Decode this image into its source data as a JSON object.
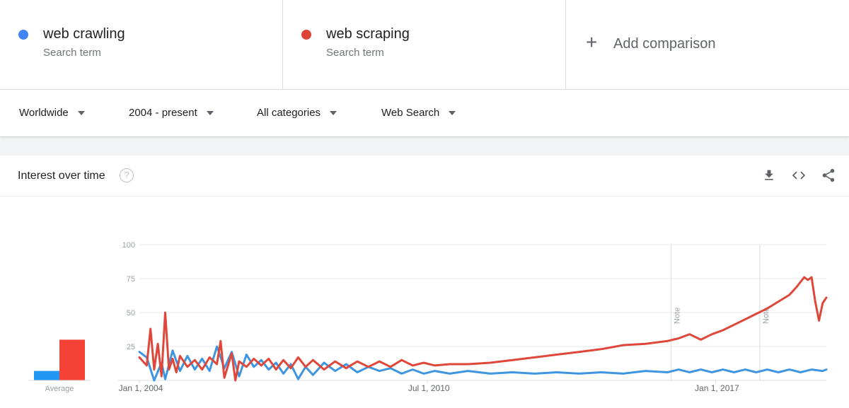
{
  "terms": [
    {
      "name": "web crawling",
      "sub": "Search term",
      "color": "#4285f4"
    },
    {
      "name": "web scraping",
      "sub": "Search term",
      "color": "#db4437"
    }
  ],
  "add_comparison": {
    "label": "Add comparison"
  },
  "filters": {
    "region": "Worldwide",
    "time": "2004 - present",
    "category": "All categories",
    "search_type": "Web Search"
  },
  "card": {
    "title": "Interest over time",
    "help_icon": "help-icon",
    "tools": [
      "download-icon",
      "embed-icon",
      "share-icon"
    ]
  },
  "chart_data": {
    "type": "line",
    "ylim": [
      0,
      100
    ],
    "yticks": [
      "100",
      "75",
      "50",
      "25"
    ],
    "xlim": [
      "2004-01-01",
      "2019-07-01"
    ],
    "xticks": [
      {
        "label": "Jan 1, 2004",
        "date": "2004-01-01"
      },
      {
        "label": "Jul 1, 2010",
        "date": "2010-07-01"
      },
      {
        "label": "Jan 1, 2017",
        "date": "2017-01-01"
      }
    ],
    "notes": [
      {
        "label": "Note",
        "date": "2016-01-01"
      },
      {
        "label": "Note",
        "date": "2018-01-01"
      }
    ],
    "average": {
      "label": "Average",
      "values": [
        7,
        30
      ]
    },
    "series": [
      {
        "name": "web crawling",
        "color": "#4285f4",
        "line_color": "#3e95e0",
        "points": [
          [
            "2004-01",
            21
          ],
          [
            "2004-03",
            17
          ],
          [
            "2004-05",
            0
          ],
          [
            "2004-07",
            13
          ],
          [
            "2004-08",
            1
          ],
          [
            "2004-10",
            22
          ],
          [
            "2004-12",
            7
          ],
          [
            "2005-02",
            18
          ],
          [
            "2005-04",
            8
          ],
          [
            "2005-06",
            16
          ],
          [
            "2005-08",
            7
          ],
          [
            "2005-10",
            25
          ],
          [
            "2005-12",
            9
          ],
          [
            "2006-02",
            21
          ],
          [
            "2006-04",
            3
          ],
          [
            "2006-06",
            19
          ],
          [
            "2006-08",
            10
          ],
          [
            "2006-10",
            15
          ],
          [
            "2006-12",
            8
          ],
          [
            "2007-02",
            13
          ],
          [
            "2007-04",
            5
          ],
          [
            "2007-06",
            12
          ],
          [
            "2007-08",
            1
          ],
          [
            "2007-10",
            10
          ],
          [
            "2007-12",
            4
          ],
          [
            "2008-03",
            13
          ],
          [
            "2008-06",
            7
          ],
          [
            "2008-09",
            12
          ],
          [
            "2008-12",
            6
          ],
          [
            "2009-03",
            10
          ],
          [
            "2009-06",
            7
          ],
          [
            "2009-09",
            9
          ],
          [
            "2009-12",
            5
          ],
          [
            "2010-03",
            8
          ],
          [
            "2010-06",
            5
          ],
          [
            "2010-09",
            7
          ],
          [
            "2011-01",
            5
          ],
          [
            "2011-06",
            7
          ],
          [
            "2011-12",
            5
          ],
          [
            "2012-06",
            6
          ],
          [
            "2012-12",
            5
          ],
          [
            "2013-06",
            6
          ],
          [
            "2013-12",
            5
          ],
          [
            "2014-06",
            6
          ],
          [
            "2014-12",
            5
          ],
          [
            "2015-06",
            7
          ],
          [
            "2015-12",
            6
          ],
          [
            "2016-03",
            8
          ],
          [
            "2016-06",
            6
          ],
          [
            "2016-09",
            8
          ],
          [
            "2016-12",
            6
          ],
          [
            "2017-03",
            8
          ],
          [
            "2017-06",
            6
          ],
          [
            "2017-09",
            8
          ],
          [
            "2017-12",
            6
          ],
          [
            "2018-03",
            8
          ],
          [
            "2018-06",
            6
          ],
          [
            "2018-09",
            8
          ],
          [
            "2018-12",
            6
          ],
          [
            "2019-03",
            8
          ],
          [
            "2019-06",
            7
          ],
          [
            "2019-07",
            8
          ]
        ]
      },
      {
        "name": "web scraping",
        "color": "#db4437",
        "line_color": "#e0473b",
        "points": [
          [
            "2004-01",
            17
          ],
          [
            "2004-03",
            11
          ],
          [
            "2004-04",
            38
          ],
          [
            "2004-05",
            8
          ],
          [
            "2004-06",
            27
          ],
          [
            "2004-07",
            3
          ],
          [
            "2004-08",
            50
          ],
          [
            "2004-09",
            8
          ],
          [
            "2004-10",
            16
          ],
          [
            "2004-11",
            6
          ],
          [
            "2004-12",
            18
          ],
          [
            "2005-02",
            10
          ],
          [
            "2005-04",
            15
          ],
          [
            "2005-06",
            8
          ],
          [
            "2005-08",
            17
          ],
          [
            "2005-10",
            12
          ],
          [
            "2005-11",
            29
          ],
          [
            "2005-12",
            2
          ],
          [
            "2006-02",
            20
          ],
          [
            "2006-03",
            0
          ],
          [
            "2006-04",
            14
          ],
          [
            "2006-06",
            10
          ],
          [
            "2006-08",
            16
          ],
          [
            "2006-10",
            11
          ],
          [
            "2006-12",
            16
          ],
          [
            "2007-02",
            8
          ],
          [
            "2007-04",
            15
          ],
          [
            "2007-06",
            9
          ],
          [
            "2007-08",
            17
          ],
          [
            "2007-10",
            10
          ],
          [
            "2007-12",
            15
          ],
          [
            "2008-03",
            8
          ],
          [
            "2008-06",
            14
          ],
          [
            "2008-09",
            9
          ],
          [
            "2008-12",
            14
          ],
          [
            "2009-03",
            10
          ],
          [
            "2009-06",
            14
          ],
          [
            "2009-09",
            10
          ],
          [
            "2009-12",
            15
          ],
          [
            "2010-03",
            11
          ],
          [
            "2010-06",
            13
          ],
          [
            "2010-09",
            11
          ],
          [
            "2011-01",
            12
          ],
          [
            "2011-06",
            12
          ],
          [
            "2011-12",
            13
          ],
          [
            "2012-06",
            15
          ],
          [
            "2012-12",
            17
          ],
          [
            "2013-06",
            19
          ],
          [
            "2013-12",
            21
          ],
          [
            "2014-06",
            23
          ],
          [
            "2014-12",
            26
          ],
          [
            "2015-06",
            27
          ],
          [
            "2015-12",
            29
          ],
          [
            "2016-03",
            31
          ],
          [
            "2016-06",
            34
          ],
          [
            "2016-09",
            30
          ],
          [
            "2016-12",
            34
          ],
          [
            "2017-03",
            37
          ],
          [
            "2017-06",
            41
          ],
          [
            "2017-09",
            45
          ],
          [
            "2017-12",
            49
          ],
          [
            "2018-03",
            53
          ],
          [
            "2018-06",
            58
          ],
          [
            "2018-09",
            63
          ],
          [
            "2018-11",
            69
          ],
          [
            "2019-01",
            76
          ],
          [
            "2019-02",
            74
          ],
          [
            "2019-03",
            76
          ],
          [
            "2019-04",
            58
          ],
          [
            "2019-05",
            44
          ],
          [
            "2019-06",
            57
          ],
          [
            "2019-07",
            61
          ]
        ]
      }
    ]
  }
}
